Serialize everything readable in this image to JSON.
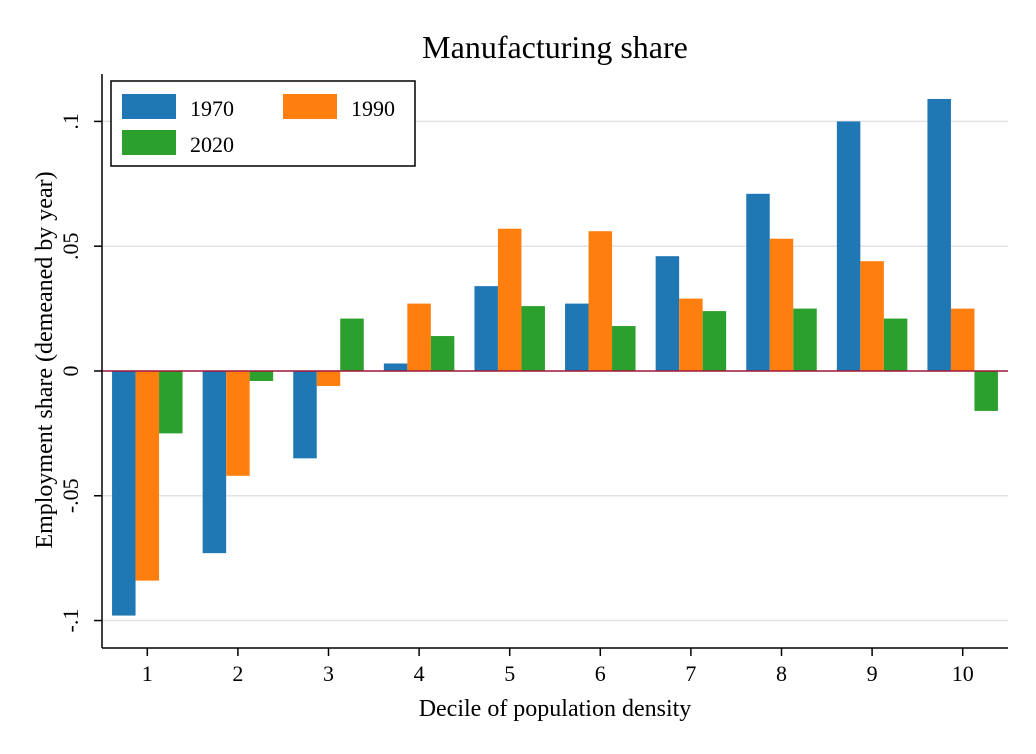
{
  "chart_data": {
    "type": "bar",
    "title": "Manufacturing share",
    "xlabel": "Decile of population density",
    "ylabel": "Employment share (demeaned by year)",
    "categories": [
      "1",
      "2",
      "3",
      "4",
      "5",
      "6",
      "7",
      "8",
      "9",
      "10"
    ],
    "series": [
      {
        "name": "1970",
        "color": "#1f77b4",
        "values": [
          -0.098,
          -0.073,
          -0.035,
          0.003,
          0.034,
          0.027,
          0.046,
          0.071,
          0.1,
          0.109
        ]
      },
      {
        "name": "1990",
        "color": "#ff7f0e",
        "values": [
          -0.084,
          -0.042,
          -0.006,
          0.027,
          0.057,
          0.056,
          0.029,
          0.053,
          0.044,
          0.025
        ]
      },
      {
        "name": "2020",
        "color": "#2ca02c",
        "values": [
          -0.025,
          -0.004,
          0.021,
          0.014,
          0.026,
          0.018,
          0.024,
          0.025,
          0.021,
          -0.016
        ]
      }
    ],
    "yticks": [
      {
        "value": -0.1,
        "label": "-.1"
      },
      {
        "value": -0.05,
        "label": "-.05"
      },
      {
        "value": 0,
        "label": "0"
      },
      {
        "value": 0.05,
        "label": ".05"
      },
      {
        "value": 0.1,
        "label": ".1"
      }
    ],
    "ylim": [
      -0.111,
      0.119
    ],
    "grid": true,
    "zero_line_color": "#a0163a",
    "legend_position": "top-left"
  }
}
